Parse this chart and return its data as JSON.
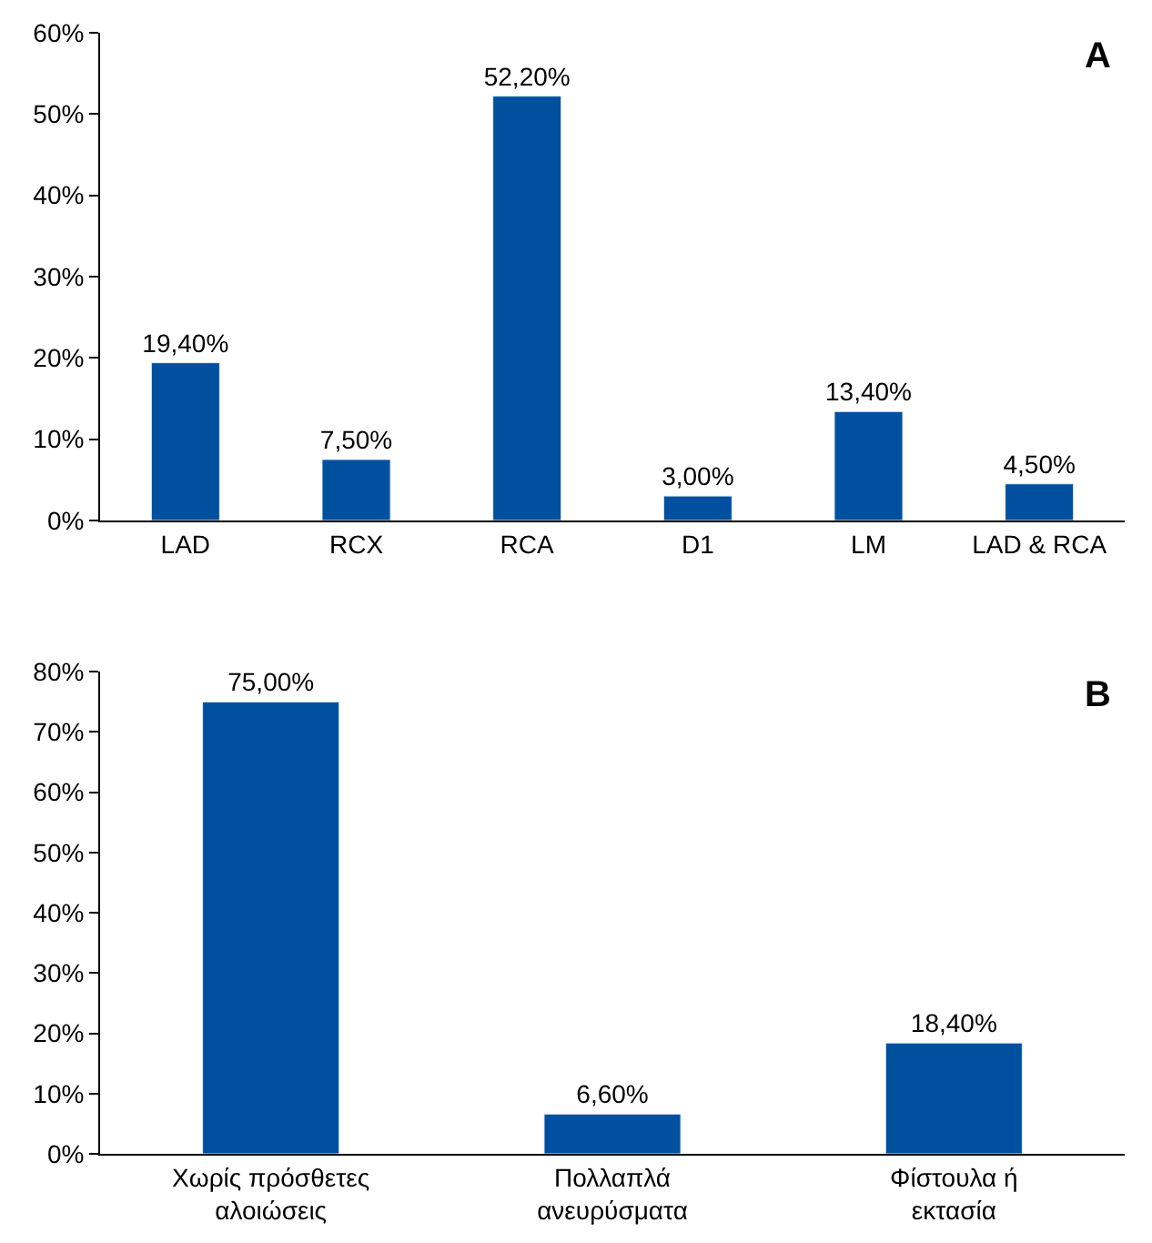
{
  "chart_data": [
    {
      "type": "bar",
      "title": "A",
      "categories": [
        "LAD",
        "RCX",
        "RCA",
        "D1",
        "LM",
        "LAD & RCA"
      ],
      "values": [
        19.4,
        7.5,
        52.2,
        3.0,
        13.4,
        4.5
      ],
      "value_labels": [
        "19,40%",
        "7,50%",
        "52,20%",
        "3,00%",
        "13,40%",
        "4,50%"
      ],
      "color": "#0050a0",
      "ylim": [
        0,
        60
      ],
      "yticks": [
        {
          "value": 0,
          "label": "0%"
        },
        {
          "value": 10,
          "label": "10%"
        },
        {
          "value": 20,
          "label": "20%"
        },
        {
          "value": 30,
          "label": "30%"
        },
        {
          "value": 40,
          "label": "40%"
        },
        {
          "value": 50,
          "label": "50%"
        },
        {
          "value": 60,
          "label": "60%"
        }
      ]
    },
    {
      "type": "bar",
      "title": "B",
      "categories": [
        "Χωρίς πρόσθετες αλοιώσεις",
        "Πολλαπλά ανευρύσματα",
        "Φίστουλα ή εκτασία"
      ],
      "values": [
        75.0,
        6.6,
        18.4
      ],
      "value_labels": [
        "75,00%",
        "6,60%",
        "18,40%"
      ],
      "color": "#0050a0",
      "ylim": [
        0,
        80
      ],
      "yticks": [
        {
          "value": 0,
          "label": "0%"
        },
        {
          "value": 10,
          "label": "10%"
        },
        {
          "value": 20,
          "label": "20%"
        },
        {
          "value": 30,
          "label": "30%"
        },
        {
          "value": 40,
          "label": "40%"
        },
        {
          "value": 50,
          "label": "50%"
        },
        {
          "value": 60,
          "label": "60%"
        },
        {
          "value": 70,
          "label": "70%"
        },
        {
          "value": 80,
          "label": "80%"
        }
      ]
    }
  ]
}
